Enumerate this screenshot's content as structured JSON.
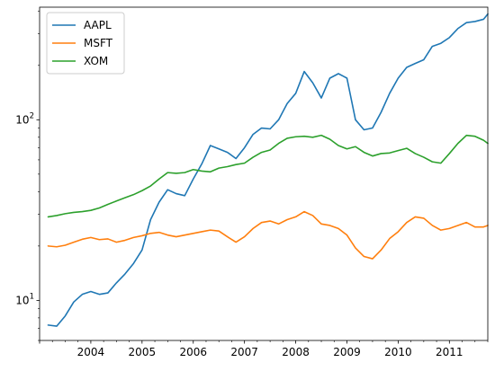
{
  "chart_data": {
    "type": "line",
    "title": "",
    "xlabel": "",
    "ylabel": "",
    "yscale": "log",
    "xlim": [
      "2003-01",
      "2011-10"
    ],
    "ylim": [
      6,
      420
    ],
    "x_tick_labels": [
      "2004",
      "2005",
      "2006",
      "2007",
      "2008",
      "2009",
      "2010",
      "2011"
    ],
    "y_tick_labels": [
      {
        "value": 10,
        "base": "10",
        "exp": "1"
      },
      {
        "value": 100,
        "base": "10",
        "exp": "2"
      }
    ],
    "grid": false,
    "legend": {
      "position": "top-left",
      "entries": [
        "AAPL",
        "MSFT",
        "XOM"
      ]
    },
    "series": [
      {
        "name": "AAPL",
        "color": "#1f77b4",
        "points": [
          [
            "2003-03",
            7.3
          ],
          [
            "2003-05",
            7.2
          ],
          [
            "2003-07",
            8.2
          ],
          [
            "2003-09",
            9.8
          ],
          [
            "2003-11",
            10.8
          ],
          [
            "2004-01",
            11.2
          ],
          [
            "2004-03",
            10.8
          ],
          [
            "2004-05",
            11.0
          ],
          [
            "2004-07",
            12.5
          ],
          [
            "2004-09",
            14.0
          ],
          [
            "2004-11",
            16.0
          ],
          [
            "2005-01",
            19.0
          ],
          [
            "2005-03",
            28.0
          ],
          [
            "2005-05",
            35.0
          ],
          [
            "2005-07",
            41.0
          ],
          [
            "2005-09",
            39.0
          ],
          [
            "2005-11",
            38.0
          ],
          [
            "2006-01",
            47.0
          ],
          [
            "2006-03",
            57.0
          ],
          [
            "2006-05",
            72.0
          ],
          [
            "2006-07",
            69.0
          ],
          [
            "2006-09",
            66.0
          ],
          [
            "2006-11",
            61.0
          ],
          [
            "2007-01",
            70.0
          ],
          [
            "2007-03",
            83.0
          ],
          [
            "2007-05",
            90.0
          ],
          [
            "2007-07",
            89.0
          ],
          [
            "2007-09",
            100.0
          ],
          [
            "2007-11",
            123.0
          ],
          [
            "2008-01",
            140.0
          ],
          [
            "2008-03",
            185.0
          ],
          [
            "2008-05",
            160.0
          ],
          [
            "2008-07",
            132.0
          ],
          [
            "2008-09",
            170.0
          ],
          [
            "2008-11",
            180.0
          ],
          [
            "2009-01",
            170.0
          ],
          [
            "2009-03",
            100.0
          ],
          [
            "2009-05",
            88.0
          ],
          [
            "2009-07",
            90.0
          ],
          [
            "2009-09",
            110.0
          ],
          [
            "2009-11",
            140.0
          ],
          [
            "2010-01",
            170.0
          ],
          [
            "2010-03",
            195.0
          ],
          [
            "2010-05",
            205.0
          ],
          [
            "2010-07",
            215.0
          ],
          [
            "2010-09",
            255.0
          ],
          [
            "2010-11",
            265.0
          ],
          [
            "2011-01",
            285.0
          ],
          [
            "2011-03",
            320.0
          ],
          [
            "2011-05",
            345.0
          ],
          [
            "2011-07",
            350.0
          ],
          [
            "2011-09",
            360.0
          ],
          [
            "2011-10",
            385.0
          ]
        ]
      },
      {
        "name": "MSFT",
        "color": "#ff7f0e",
        "points": [
          [
            "2003-03",
            20.0
          ],
          [
            "2003-05",
            19.8
          ],
          [
            "2003-07",
            20.2
          ],
          [
            "2003-09",
            21.0
          ],
          [
            "2003-11",
            21.8
          ],
          [
            "2004-01",
            22.3
          ],
          [
            "2004-03",
            21.7
          ],
          [
            "2004-05",
            21.9
          ],
          [
            "2004-07",
            21.0
          ],
          [
            "2004-09",
            21.5
          ],
          [
            "2004-11",
            22.3
          ],
          [
            "2005-01",
            22.8
          ],
          [
            "2005-03",
            23.5
          ],
          [
            "2005-05",
            23.8
          ],
          [
            "2005-07",
            23.0
          ],
          [
            "2005-09",
            22.5
          ],
          [
            "2005-11",
            23.0
          ],
          [
            "2006-01",
            23.5
          ],
          [
            "2006-03",
            24.0
          ],
          [
            "2006-05",
            24.5
          ],
          [
            "2006-07",
            24.2
          ],
          [
            "2006-09",
            22.5
          ],
          [
            "2006-11",
            21.0
          ],
          [
            "2007-01",
            22.5
          ],
          [
            "2007-03",
            25.0
          ],
          [
            "2007-05",
            27.0
          ],
          [
            "2007-07",
            27.5
          ],
          [
            "2007-09",
            26.5
          ],
          [
            "2007-11",
            28.0
          ],
          [
            "2008-01",
            29.0
          ],
          [
            "2008-03",
            31.0
          ],
          [
            "2008-05",
            29.5
          ],
          [
            "2008-07",
            26.5
          ],
          [
            "2008-09",
            26.0
          ],
          [
            "2008-11",
            25.0
          ],
          [
            "2009-01",
            23.0
          ],
          [
            "2009-03",
            19.5
          ],
          [
            "2009-05",
            17.5
          ],
          [
            "2009-07",
            17.0
          ],
          [
            "2009-09",
            19.0
          ],
          [
            "2009-11",
            22.0
          ],
          [
            "2010-01",
            24.0
          ],
          [
            "2010-03",
            27.0
          ],
          [
            "2010-05",
            29.0
          ],
          [
            "2010-07",
            28.5
          ],
          [
            "2010-09",
            26.0
          ],
          [
            "2010-11",
            24.5
          ],
          [
            "2011-01",
            25.0
          ],
          [
            "2011-03",
            26.0
          ],
          [
            "2011-05",
            27.0
          ],
          [
            "2011-07",
            25.5
          ],
          [
            "2011-09",
            25.5
          ],
          [
            "2011-10",
            26.0
          ]
        ]
      },
      {
        "name": "XOM",
        "color": "#2ca02c",
        "points": [
          [
            "2003-03",
            29.0
          ],
          [
            "2003-05",
            29.5
          ],
          [
            "2003-07",
            30.2
          ],
          [
            "2003-09",
            30.7
          ],
          [
            "2003-11",
            31.0
          ],
          [
            "2004-01",
            31.5
          ],
          [
            "2004-03",
            32.5
          ],
          [
            "2004-05",
            34.0
          ],
          [
            "2004-07",
            35.5
          ],
          [
            "2004-09",
            37.0
          ],
          [
            "2004-11",
            38.5
          ],
          [
            "2005-01",
            40.5
          ],
          [
            "2005-03",
            43.0
          ],
          [
            "2005-05",
            47.0
          ],
          [
            "2005-07",
            51.0
          ],
          [
            "2005-09",
            50.5
          ],
          [
            "2005-11",
            51.0
          ],
          [
            "2006-01",
            53.0
          ],
          [
            "2006-03",
            52.0
          ],
          [
            "2006-05",
            51.5
          ],
          [
            "2006-07",
            54.0
          ],
          [
            "2006-09",
            55.0
          ],
          [
            "2006-11",
            56.5
          ],
          [
            "2007-01",
            57.5
          ],
          [
            "2007-03",
            62.0
          ],
          [
            "2007-05",
            66.0
          ],
          [
            "2007-07",
            68.0
          ],
          [
            "2007-09",
            74.0
          ],
          [
            "2007-11",
            79.0
          ],
          [
            "2008-01",
            80.5
          ],
          [
            "2008-03",
            81.0
          ],
          [
            "2008-05",
            80.0
          ],
          [
            "2008-07",
            82.0
          ],
          [
            "2008-09",
            78.0
          ],
          [
            "2008-11",
            72.0
          ],
          [
            "2009-01",
            69.0
          ],
          [
            "2009-03",
            71.0
          ],
          [
            "2009-05",
            66.0
          ],
          [
            "2009-07",
            63.0
          ],
          [
            "2009-09",
            65.0
          ],
          [
            "2009-11",
            65.5
          ],
          [
            "2010-01",
            67.5
          ],
          [
            "2010-03",
            69.5
          ],
          [
            "2010-05",
            65.0
          ],
          [
            "2010-07",
            62.0
          ],
          [
            "2010-09",
            58.5
          ],
          [
            "2010-11",
            57.5
          ],
          [
            "2011-01",
            65.0
          ],
          [
            "2011-03",
            74.0
          ],
          [
            "2011-05",
            82.0
          ],
          [
            "2011-07",
            81.0
          ],
          [
            "2011-09",
            77.0
          ],
          [
            "2011-10",
            74.0
          ]
        ]
      }
    ]
  }
}
